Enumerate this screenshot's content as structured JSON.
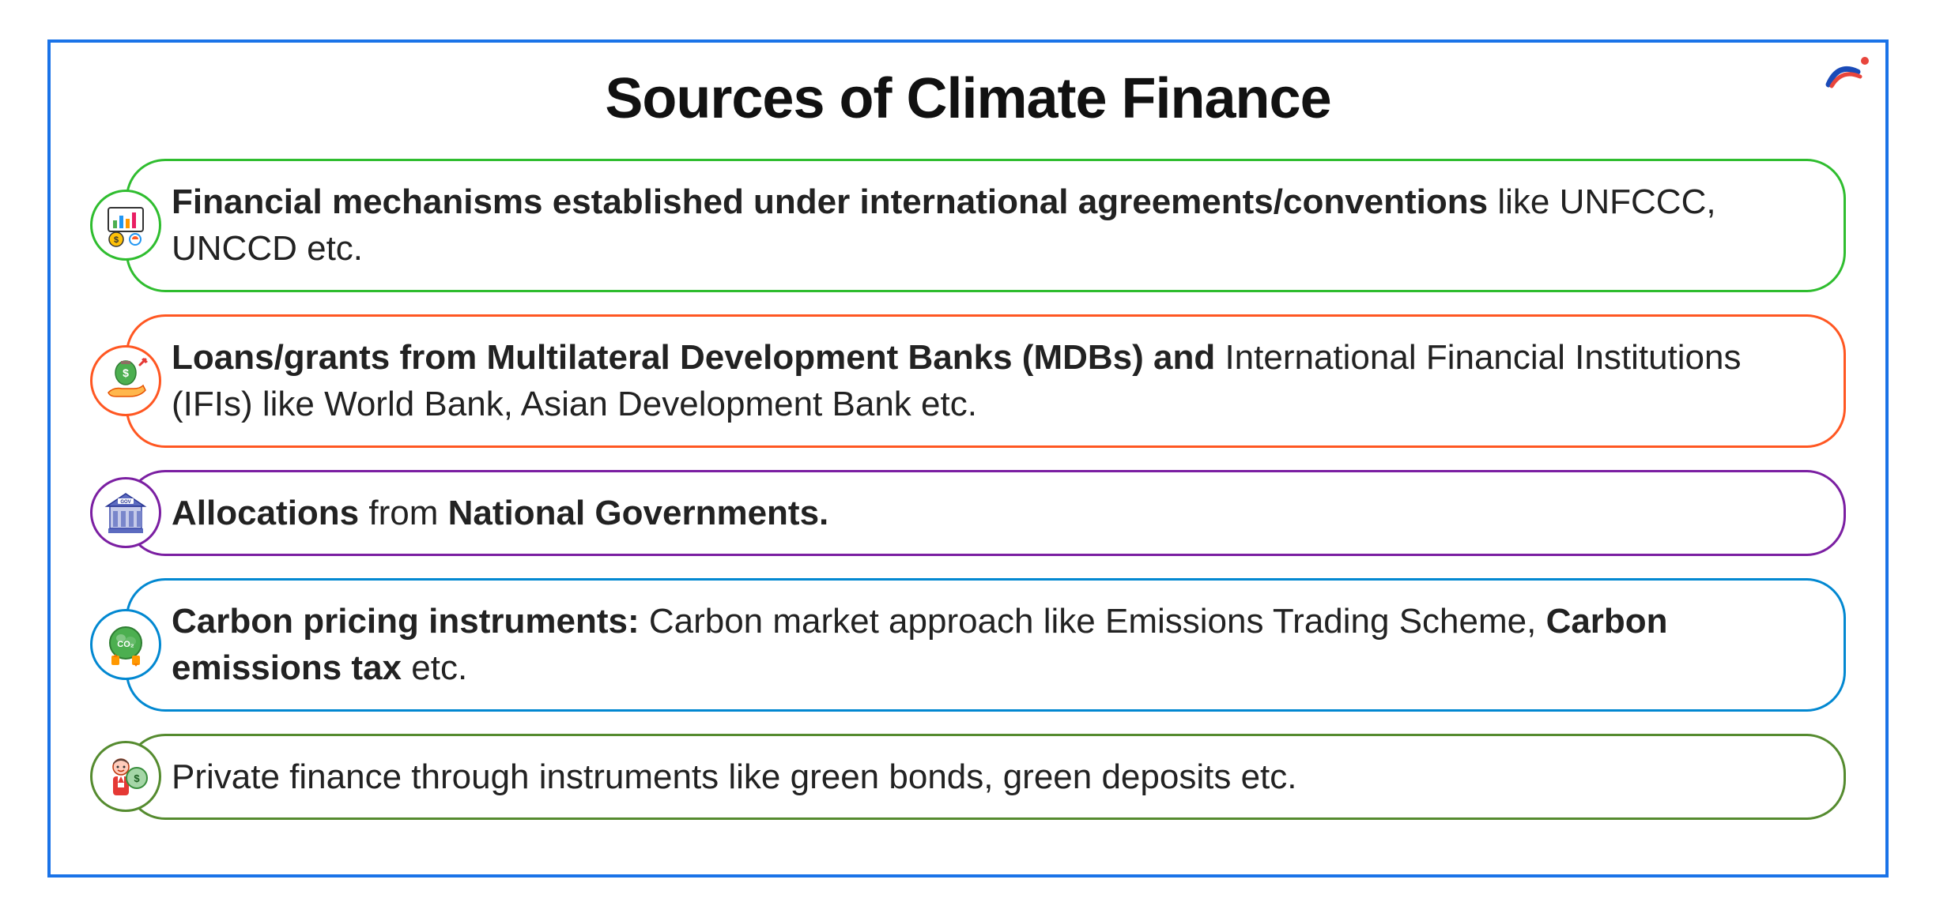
{
  "title": "Sources of Climate Finance",
  "outer_border_color": "#1a73e8",
  "background_color": "#ffffff",
  "title_color": "#111111",
  "title_fontsize": 72,
  "body_fontsize": 44,
  "logo": {
    "swoosh_color": "#1a4bb8",
    "dot_color": "#e8453c"
  },
  "items": [
    {
      "icon_name": "chart-money-icon",
      "icon_emoji": "📊",
      "border_color": "#2fbd2f",
      "box_border_color": "#2fbd2f",
      "text_parts": [
        {
          "text": "Financial mechanisms established under international agreements/conventions",
          "bold": true
        },
        {
          "text": " like UNFCCC, UNCCD etc.",
          "bold": false
        }
      ]
    },
    {
      "icon_name": "money-hand-icon",
      "icon_emoji": "💰",
      "border_color": "#ff5722",
      "box_border_color": "#ff5722",
      "text_parts": [
        {
          "text": "Loans/grants from Multilateral Development Banks (MDBs) and",
          "bold": true
        },
        {
          "text": " International Financial Institutions (IFIs) like World Bank, Asian Development Bank etc.",
          "bold": false
        }
      ]
    },
    {
      "icon_name": "government-building-icon",
      "icon_emoji": "🏛️",
      "border_color": "#7b1fa2",
      "box_border_color": "#7b1fa2",
      "text_parts": [
        {
          "text": "Allocations",
          "bold": true
        },
        {
          "text": " from ",
          "bold": false
        },
        {
          "text": "National Governments.",
          "bold": true
        }
      ]
    },
    {
      "icon_name": "co2-icon",
      "icon_emoji": "🌍",
      "border_color": "#0288d1",
      "box_border_color": "#0288d1",
      "text_parts": [
        {
          "text": "Carbon pricing instruments:",
          "bold": true
        },
        {
          "text": " Carbon market approach like Emissions Trading Scheme, ",
          "bold": false
        },
        {
          "text": "Carbon emissions tax",
          "bold": true
        },
        {
          "text": " etc.",
          "bold": false
        }
      ]
    },
    {
      "icon_name": "person-money-icon",
      "icon_emoji": "👤",
      "border_color": "#558b2f",
      "box_border_color": "#558b2f",
      "text_parts": [
        {
          "text": "Private finance through instruments like green bonds, green deposits etc.",
          "bold": false
        }
      ]
    }
  ]
}
